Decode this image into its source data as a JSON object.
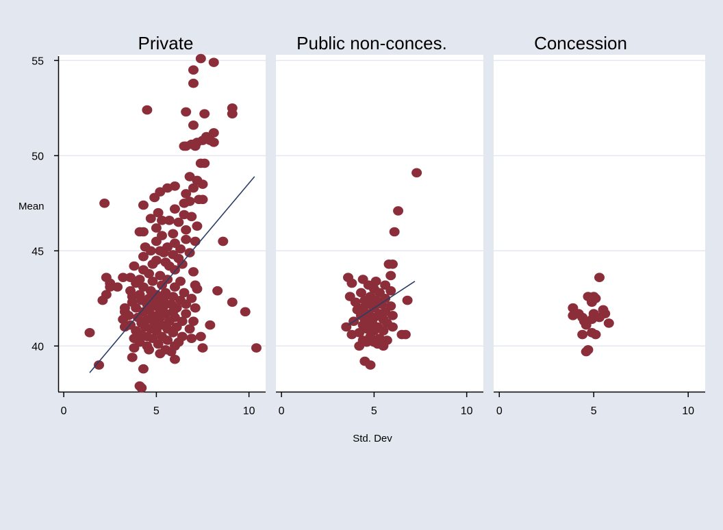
{
  "colors": {
    "background": "#e3e7ef",
    "plot_region": "#ffffff",
    "strip": "#e3e7ef",
    "gridline": "#e3e7ef",
    "marker": "#8b2e3a",
    "fit_line": "#2a3d66",
    "text": "#000000"
  },
  "chart_data": {
    "type": "scatter",
    "xlabel": "Std. Dev",
    "ylabel": "Mean",
    "xlim": [
      -0.3,
      10.9
    ],
    "ylim": [
      37.6,
      55.3
    ],
    "xticks": [
      0,
      5,
      10
    ],
    "yticks": [
      40,
      45,
      50,
      55
    ],
    "grid": true,
    "panels": [
      {
        "title": "Private",
        "fit_line": [
          [
            1.4,
            38.6
          ],
          [
            10.3,
            48.9
          ]
        ],
        "points": [
          [
            7.4,
            55.1
          ],
          [
            8.1,
            54.9
          ],
          [
            7.0,
            54.5
          ],
          [
            7.0,
            53.8
          ],
          [
            4.5,
            52.4
          ],
          [
            6.6,
            52.3
          ],
          [
            7.6,
            52.2
          ],
          [
            9.1,
            52.5
          ],
          [
            9.1,
            52.2
          ],
          [
            7.0,
            51.6
          ],
          [
            8.1,
            51.2
          ],
          [
            7.7,
            51.0
          ],
          [
            7.5,
            50.8
          ],
          [
            7.2,
            50.7
          ],
          [
            6.9,
            50.6
          ],
          [
            6.6,
            50.5
          ],
          [
            6.5,
            50.5
          ],
          [
            7.9,
            50.8
          ],
          [
            8.1,
            50.7
          ],
          [
            7.1,
            50.5
          ],
          [
            7.4,
            49.6
          ],
          [
            7.6,
            49.6
          ],
          [
            6.8,
            48.9
          ],
          [
            7.2,
            48.7
          ],
          [
            7.5,
            48.5
          ],
          [
            7.0,
            48.3
          ],
          [
            6.6,
            48.0
          ],
          [
            6.0,
            48.4
          ],
          [
            5.6,
            48.3
          ],
          [
            5.2,
            48.1
          ],
          [
            4.9,
            47.8
          ],
          [
            7.3,
            47.7
          ],
          [
            7.5,
            47.7
          ],
          [
            6.8,
            47.6
          ],
          [
            6.5,
            47.5
          ],
          [
            2.2,
            47.5
          ],
          [
            4.3,
            47.4
          ],
          [
            6.0,
            47.2
          ],
          [
            5.1,
            47.0
          ],
          [
            6.5,
            46.9
          ],
          [
            6.9,
            46.8
          ],
          [
            4.7,
            46.7
          ],
          [
            5.3,
            46.6
          ],
          [
            5.7,
            46.6
          ],
          [
            6.2,
            46.5
          ],
          [
            7.2,
            46.3
          ],
          [
            5.0,
            46.2
          ],
          [
            6.6,
            46.1
          ],
          [
            4.1,
            46.0
          ],
          [
            4.3,
            46.0
          ],
          [
            5.9,
            45.9
          ],
          [
            5.3,
            45.8
          ],
          [
            6.6,
            45.6
          ],
          [
            5.0,
            45.5
          ],
          [
            7.1,
            45.5
          ],
          [
            8.6,
            45.5
          ],
          [
            6.0,
            45.4
          ],
          [
            4.4,
            45.2
          ],
          [
            5.6,
            45.2
          ],
          [
            6.3,
            45.1
          ],
          [
            4.7,
            45.0
          ],
          [
            5.2,
            45.0
          ],
          [
            6.8,
            44.9
          ],
          [
            5.4,
            44.9
          ],
          [
            5.9,
            44.8
          ],
          [
            4.3,
            44.7
          ],
          [
            6.2,
            44.6
          ],
          [
            5.0,
            44.5
          ],
          [
            5.5,
            44.4
          ],
          [
            4.8,
            44.3
          ],
          [
            6.4,
            44.3
          ],
          [
            3.8,
            44.2
          ],
          [
            5.7,
            44.2
          ],
          [
            4.3,
            44.0
          ],
          [
            6.0,
            44.0
          ],
          [
            7.0,
            43.9
          ],
          [
            4.6,
            43.8
          ],
          [
            5.2,
            43.7
          ],
          [
            2.3,
            43.6
          ],
          [
            3.2,
            43.6
          ],
          [
            3.6,
            43.6
          ],
          [
            4.1,
            43.5
          ],
          [
            5.6,
            43.5
          ],
          [
            6.3,
            43.4
          ],
          [
            4.8,
            43.4
          ],
          [
            2.5,
            43.3
          ],
          [
            3.9,
            43.3
          ],
          [
            7.1,
            43.2
          ],
          [
            5.3,
            43.2
          ],
          [
            2.5,
            43.1
          ],
          [
            2.9,
            43.1
          ],
          [
            4.3,
            43.1
          ],
          [
            6.0,
            43.1
          ],
          [
            7.2,
            43.0
          ],
          [
            8.3,
            42.9
          ],
          [
            4.7,
            42.9
          ],
          [
            3.6,
            42.9
          ],
          [
            5.5,
            42.8
          ],
          [
            6.5,
            42.8
          ],
          [
            2.3,
            42.7
          ],
          [
            4.1,
            42.7
          ],
          [
            5.0,
            42.7
          ],
          [
            5.9,
            42.6
          ],
          [
            3.7,
            42.6
          ],
          [
            6.9,
            42.5
          ],
          [
            4.6,
            42.5
          ],
          [
            5.4,
            42.5
          ],
          [
            2.1,
            42.4
          ],
          [
            6.3,
            42.4
          ],
          [
            4.2,
            42.4
          ],
          [
            5.0,
            42.3
          ],
          [
            9.1,
            42.3
          ],
          [
            3.7,
            42.3
          ],
          [
            5.8,
            42.2
          ],
          [
            4.5,
            42.2
          ],
          [
            6.6,
            42.2
          ],
          [
            3.3,
            42.0
          ],
          [
            4.9,
            42.1
          ],
          [
            5.4,
            42.1
          ],
          [
            6.1,
            42.0
          ],
          [
            7.1,
            42.0
          ],
          [
            3.9,
            42.0
          ],
          [
            4.6,
            41.9
          ],
          [
            5.2,
            41.9
          ],
          [
            5.9,
            41.8
          ],
          [
            9.8,
            41.8
          ],
          [
            3.3,
            41.8
          ],
          [
            4.3,
            41.8
          ],
          [
            6.6,
            41.7
          ],
          [
            5.5,
            41.7
          ],
          [
            3.5,
            41.6
          ],
          [
            4.8,
            41.6
          ],
          [
            6.0,
            41.5
          ],
          [
            4.0,
            41.5
          ],
          [
            5.2,
            41.5
          ],
          [
            4.5,
            41.4
          ],
          [
            3.2,
            41.4
          ],
          [
            6.4,
            41.3
          ],
          [
            7.0,
            41.3
          ],
          [
            5.7,
            41.3
          ],
          [
            4.2,
            41.2
          ],
          [
            4.9,
            41.2
          ],
          [
            3.6,
            41.1
          ],
          [
            5.3,
            41.1
          ],
          [
            6.1,
            41.0
          ],
          [
            7.9,
            41.1
          ],
          [
            4.4,
            41.0
          ],
          [
            3.3,
            41.0
          ],
          [
            5.6,
            40.9
          ],
          [
            4.7,
            40.9
          ],
          [
            6.8,
            40.9
          ],
          [
            3.9,
            40.8
          ],
          [
            5.0,
            40.8
          ],
          [
            1.4,
            40.7
          ],
          [
            5.9,
            40.7
          ],
          [
            4.2,
            40.6
          ],
          [
            6.4,
            40.5
          ],
          [
            4.5,
            40.5
          ],
          [
            5.3,
            40.5
          ],
          [
            7.4,
            40.5
          ],
          [
            6.9,
            40.4
          ],
          [
            3.8,
            40.4
          ],
          [
            4.8,
            40.4
          ],
          [
            5.6,
            40.3
          ],
          [
            4.1,
            40.2
          ],
          [
            6.2,
            40.2
          ],
          [
            5.1,
            40.1
          ],
          [
            4.5,
            40.0
          ],
          [
            6.0,
            40.0
          ],
          [
            3.8,
            39.9
          ],
          [
            7.5,
            39.9
          ],
          [
            10.4,
            39.9
          ],
          [
            5.5,
            39.8
          ],
          [
            4.6,
            39.8
          ],
          [
            5.8,
            39.7
          ],
          [
            5.2,
            39.6
          ],
          [
            3.7,
            39.4
          ],
          [
            6.0,
            39.3
          ],
          [
            1.9,
            39.0
          ],
          [
            4.3,
            38.8
          ],
          [
            4.1,
            37.9
          ],
          [
            4.2,
            37.8
          ]
        ]
      },
      {
        "title": "Public non-conces.",
        "fit_line": [
          [
            3.6,
            41.1
          ],
          [
            7.2,
            43.4
          ]
        ],
        "points": [
          [
            7.3,
            49.1
          ],
          [
            6.3,
            47.1
          ],
          [
            6.1,
            46.0
          ],
          [
            5.8,
            44.3
          ],
          [
            6.0,
            44.3
          ],
          [
            5.9,
            43.7
          ],
          [
            3.6,
            43.6
          ],
          [
            4.4,
            43.5
          ],
          [
            5.1,
            43.4
          ],
          [
            3.8,
            43.3
          ],
          [
            4.7,
            43.2
          ],
          [
            5.6,
            43.2
          ],
          [
            5.0,
            43.0
          ],
          [
            5.9,
            42.9
          ],
          [
            4.3,
            42.8
          ],
          [
            5.3,
            42.8
          ],
          [
            4.8,
            42.6
          ],
          [
            3.7,
            42.6
          ],
          [
            5.6,
            42.5
          ],
          [
            4.5,
            42.4
          ],
          [
            5.1,
            42.4
          ],
          [
            6.8,
            42.4
          ],
          [
            4.0,
            42.3
          ],
          [
            4.7,
            42.2
          ],
          [
            5.4,
            42.2
          ],
          [
            5.9,
            42.1
          ],
          [
            4.4,
            42.0
          ],
          [
            5.0,
            42.0
          ],
          [
            4.1,
            41.9
          ],
          [
            5.6,
            41.8
          ],
          [
            4.7,
            41.7
          ],
          [
            5.3,
            41.7
          ],
          [
            4.3,
            41.6
          ],
          [
            6.0,
            41.6
          ],
          [
            5.0,
            41.5
          ],
          [
            4.5,
            41.4
          ],
          [
            5.5,
            41.4
          ],
          [
            3.9,
            41.3
          ],
          [
            4.9,
            41.2
          ],
          [
            5.7,
            41.2
          ],
          [
            4.4,
            41.1
          ],
          [
            5.2,
            41.0
          ],
          [
            3.5,
            41.0
          ],
          [
            6.0,
            41.0
          ],
          [
            4.6,
            40.9
          ],
          [
            5.0,
            40.8
          ],
          [
            5.5,
            40.8
          ],
          [
            4.2,
            40.7
          ],
          [
            6.7,
            40.6
          ],
          [
            6.5,
            40.6
          ],
          [
            3.8,
            40.6
          ],
          [
            4.8,
            40.5
          ],
          [
            5.3,
            40.4
          ],
          [
            4.4,
            40.3
          ],
          [
            5.7,
            40.3
          ],
          [
            5.0,
            40.2
          ],
          [
            4.6,
            40.2
          ],
          [
            5.2,
            40.1
          ],
          [
            4.2,
            40.0
          ],
          [
            5.5,
            40.0
          ],
          [
            4.5,
            39.2
          ],
          [
            4.8,
            39.0
          ]
        ]
      },
      {
        "title": "Concession",
        "points": [
          [
            5.3,
            43.6
          ],
          [
            4.7,
            42.6
          ],
          [
            5.0,
            42.6
          ],
          [
            5.1,
            42.5
          ],
          [
            4.9,
            42.3
          ],
          [
            3.9,
            42.0
          ],
          [
            5.5,
            41.9
          ],
          [
            4.2,
            41.7
          ],
          [
            3.9,
            41.6
          ],
          [
            4.4,
            41.5
          ],
          [
            5.0,
            41.7
          ],
          [
            5.6,
            41.7
          ],
          [
            4.9,
            41.4
          ],
          [
            4.5,
            41.3
          ],
          [
            5.3,
            41.5
          ],
          [
            5.8,
            41.2
          ],
          [
            4.6,
            41.1
          ],
          [
            4.4,
            40.6
          ],
          [
            4.9,
            40.7
          ],
          [
            5.1,
            40.6
          ],
          [
            4.7,
            39.8
          ],
          [
            4.6,
            39.7
          ]
        ]
      }
    ]
  }
}
